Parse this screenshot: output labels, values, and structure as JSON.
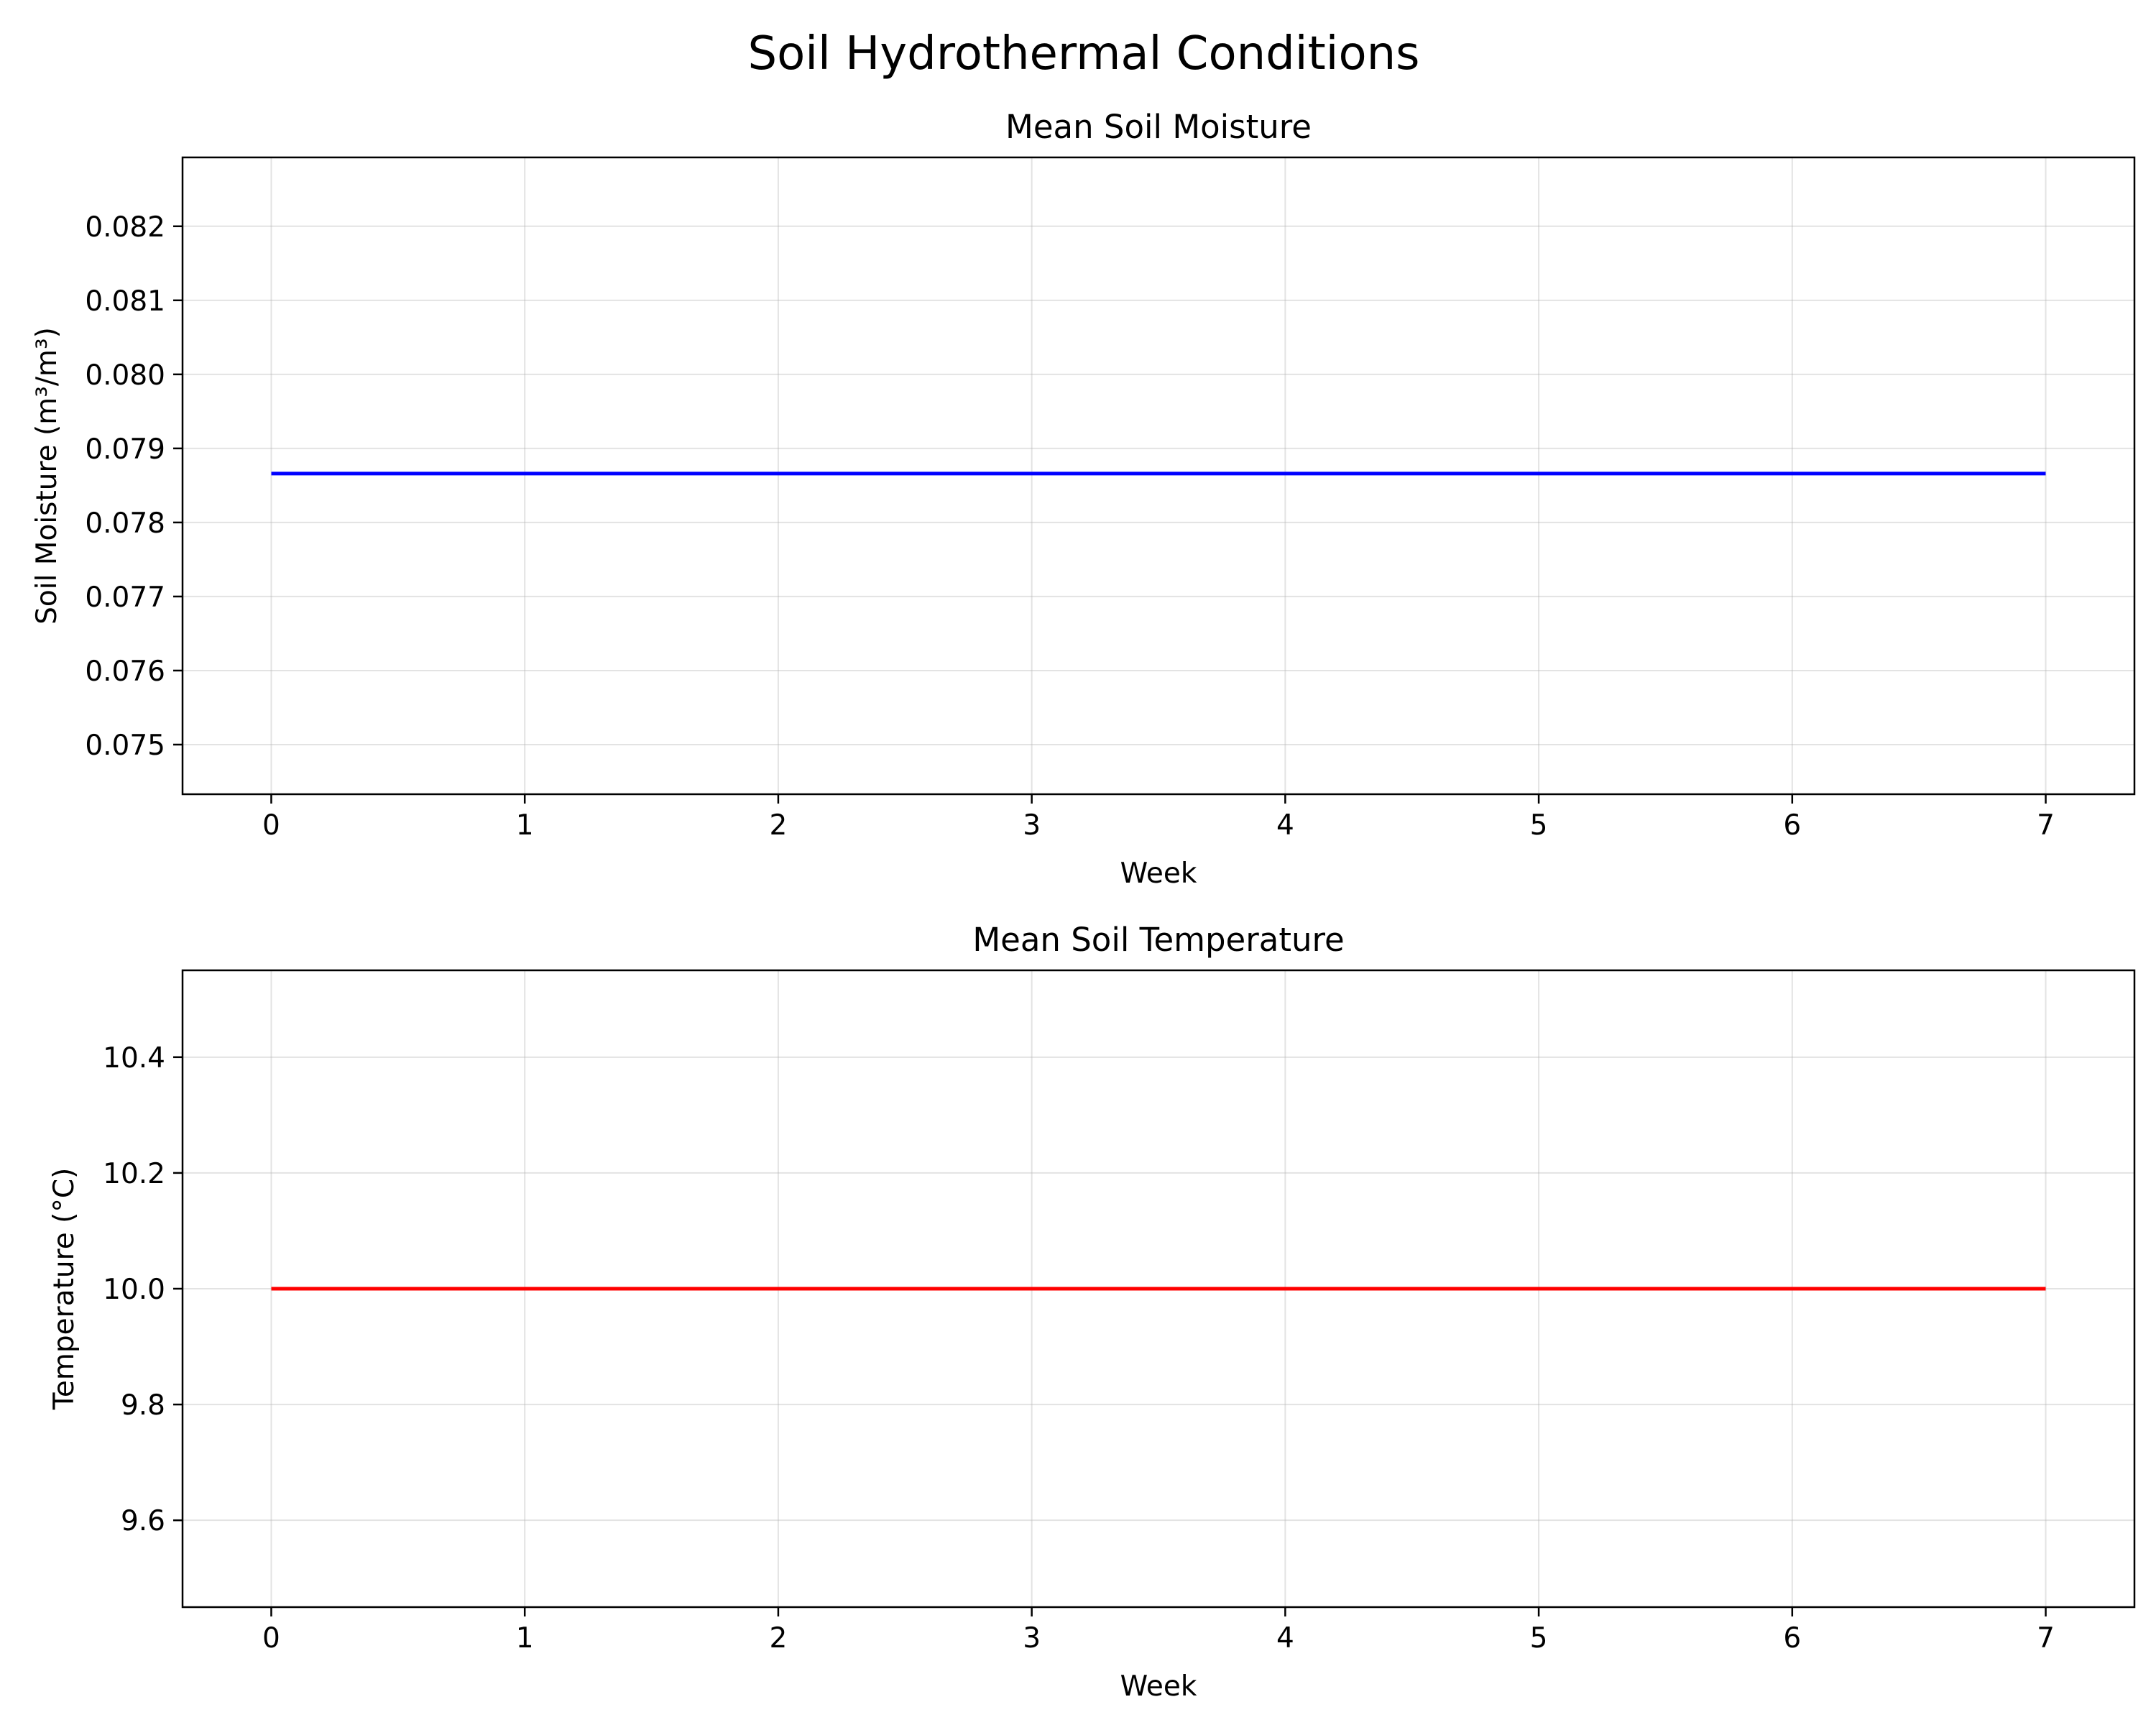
{
  "figure": {
    "suptitle": "Soil Hydrothermal Conditions"
  },
  "chart_data": [
    {
      "type": "line",
      "title": "Mean Soil Moisture",
      "xlabel": "Week",
      "ylabel": "Soil Moisture (m³/m³)",
      "xlim": [
        -0.35,
        7.35
      ],
      "ylim": [
        0.07433,
        0.08293
      ],
      "xticks": [
        0,
        1,
        2,
        3,
        4,
        5,
        6,
        7
      ],
      "yticks": [
        0.075,
        0.076,
        0.077,
        0.078,
        0.079,
        0.08,
        0.081,
        0.082
      ],
      "ytick_labels": [
        "0.075",
        "0.076",
        "0.077",
        "0.078",
        "0.079",
        "0.080",
        "0.081",
        "0.082"
      ],
      "grid": true,
      "color": "#0000ff",
      "series": [
        {
          "x": [
            0,
            1,
            2,
            3,
            4,
            5,
            6,
            7
          ],
          "values": [
            0.07866,
            0.07866,
            0.07866,
            0.07866,
            0.07866,
            0.07866,
            0.07866,
            0.07866
          ]
        }
      ]
    },
    {
      "type": "line",
      "title": "Mean Soil Temperature",
      "xlabel": "Week",
      "ylabel": "Temperature (°C)",
      "xlim": [
        -0.35,
        7.35
      ],
      "ylim": [
        9.45,
        10.55
      ],
      "xticks": [
        0,
        1,
        2,
        3,
        4,
        5,
        6,
        7
      ],
      "yticks": [
        9.6,
        9.8,
        10.0,
        10.2,
        10.4
      ],
      "ytick_labels": [
        "9.6",
        "9.8",
        "10.0",
        "10.2",
        "10.4"
      ],
      "grid": true,
      "color": "#ff0000",
      "series": [
        {
          "x": [
            0,
            1,
            2,
            3,
            4,
            5,
            6,
            7
          ],
          "values": [
            10.0,
            10.0,
            10.0,
            10.0,
            10.0,
            10.0,
            10.0,
            10.0
          ]
        }
      ]
    }
  ]
}
